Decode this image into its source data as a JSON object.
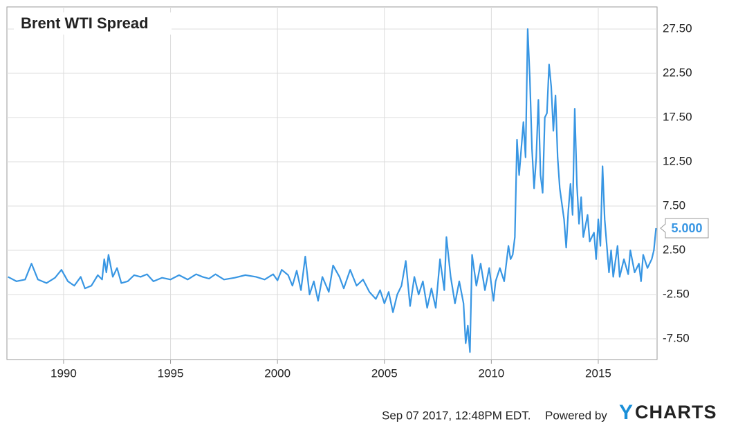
{
  "chart_data": {
    "type": "line",
    "x": [
      1987.4,
      1987.8,
      1988.2,
      1988.5,
      1988.8,
      1989.2,
      1989.6,
      1989.9,
      1990.2,
      1990.5,
      1990.8,
      1991.0,
      1991.3,
      1991.6,
      1991.8,
      1991.9,
      1992.0,
      1992.1,
      1992.3,
      1992.5,
      1992.7,
      1993.0,
      1993.3,
      1993.6,
      1993.9,
      1994.2,
      1994.6,
      1995.0,
      1995.4,
      1995.8,
      1996.2,
      1996.5,
      1996.8,
      1997.1,
      1997.5,
      1998.0,
      1998.5,
      1999.0,
      1999.4,
      1999.8,
      2000.0,
      2000.2,
      2000.5,
      2000.7,
      2000.9,
      2001.1,
      2001.3,
      2001.5,
      2001.7,
      2001.9,
      2002.1,
      2002.4,
      2002.6,
      2002.9,
      2003.1,
      2003.4,
      2003.7,
      2004.0,
      2004.3,
      2004.6,
      2004.8,
      2005.0,
      2005.2,
      2005.4,
      2005.6,
      2005.8,
      2006.0,
      2006.2,
      2006.4,
      2006.6,
      2006.8,
      2007.0,
      2007.2,
      2007.4,
      2007.6,
      2007.8,
      2007.9,
      2008.1,
      2008.3,
      2008.5,
      2008.7,
      2008.8,
      2008.9,
      2009.0,
      2009.1,
      2009.3,
      2009.5,
      2009.7,
      2009.9,
      2010.1,
      2010.2,
      2010.4,
      2010.6,
      2010.8,
      2010.9,
      2011.0,
      2011.1,
      2011.2,
      2011.3,
      2011.5,
      2011.6,
      2011.7,
      2011.8,
      2011.9,
      2012.0,
      2012.1,
      2012.2,
      2012.3,
      2012.4,
      2012.5,
      2012.6,
      2012.7,
      2012.8,
      2012.9,
      2013.0,
      2013.1,
      2013.2,
      2013.4,
      2013.5,
      2013.6,
      2013.7,
      2013.8,
      2013.9,
      2014.0,
      2014.1,
      2014.2,
      2014.3,
      2014.5,
      2014.6,
      2014.8,
      2014.9,
      2015.0,
      2015.1,
      2015.2,
      2015.3,
      2015.5,
      2015.6,
      2015.7,
      2015.9,
      2016.0,
      2016.2,
      2016.4,
      2016.5,
      2016.7,
      2016.9,
      2017.0,
      2017.1,
      2017.3,
      2017.5,
      2017.6,
      2017.7
    ],
    "series": [
      {
        "name": "Brent WTI Spread",
        "color": "#3896e3",
        "values": [
          -0.5,
          -1.0,
          -0.8,
          1.0,
          -0.8,
          -1.2,
          -0.6,
          0.3,
          -1.0,
          -1.5,
          -0.5,
          -1.8,
          -1.5,
          -0.3,
          -0.8,
          1.5,
          0.0,
          2.0,
          -0.5,
          0.5,
          -1.2,
          -1.0,
          -0.3,
          -0.5,
          -0.2,
          -1.0,
          -0.6,
          -0.8,
          -0.3,
          -0.8,
          -0.2,
          -0.5,
          -0.7,
          -0.2,
          -0.8,
          -0.6,
          -0.3,
          -0.5,
          -0.8,
          -0.2,
          -0.9,
          0.3,
          -0.3,
          -1.5,
          0.2,
          -2.0,
          1.8,
          -2.5,
          -1.0,
          -3.2,
          -0.5,
          -2.2,
          0.8,
          -0.5,
          -1.8,
          0.3,
          -1.5,
          -0.8,
          -2.2,
          -3.0,
          -2.0,
          -3.5,
          -2.2,
          -4.5,
          -2.5,
          -1.5,
          1.3,
          -3.8,
          -0.5,
          -2.5,
          -1.0,
          -4.0,
          -1.8,
          -4.0,
          1.5,
          -2.0,
          4.0,
          -0.5,
          -3.5,
          -1.0,
          -3.5,
          -8.0,
          -6.0,
          -9.0,
          2.0,
          -1.5,
          1.0,
          -2.0,
          0.5,
          -3.2,
          -1.0,
          0.5,
          -1.0,
          3.0,
          1.5,
          2.0,
          4.0,
          15.0,
          11.0,
          17.0,
          13.0,
          27.5,
          22.0,
          14.0,
          9.5,
          13.0,
          19.5,
          11.0,
          9.0,
          17.5,
          18.0,
          23.5,
          21.0,
          16.0,
          20.0,
          13.0,
          9.5,
          6.0,
          2.8,
          7.0,
          10.0,
          6.5,
          18.5,
          10.0,
          5.5,
          8.5,
          4.0,
          6.5,
          3.5,
          4.5,
          1.5,
          6.0,
          3.0,
          12.0,
          6.0,
          0.0,
          2.5,
          -0.5,
          3.0,
          -0.5,
          1.5,
          -0.2,
          2.5,
          0.0,
          1.0,
          -1.0,
          2.0,
          0.5,
          1.5,
          2.5,
          5.0
        ],
        "value_labels": [
          null,
          null,
          null,
          null,
          null,
          null,
          null,
          null,
          null,
          null,
          null,
          null,
          null,
          null,
          null,
          null,
          null,
          null,
          null,
          null,
          null,
          null,
          null,
          null,
          null,
          null,
          null,
          null,
          null,
          null,
          null,
          null,
          null,
          null,
          null,
          null,
          null,
          null,
          null,
          null,
          null,
          null,
          null,
          null,
          null,
          null,
          null,
          null,
          null,
          null,
          null,
          null,
          null,
          null,
          null,
          null,
          null,
          null,
          null,
          null,
          null,
          null,
          null,
          null,
          null,
          null,
          null,
          null,
          null,
          null,
          null,
          null,
          null,
          null,
          null,
          null,
          null,
          null,
          null,
          null,
          null,
          null,
          null,
          null,
          null,
          null,
          null,
          null,
          null,
          null,
          null,
          null,
          null,
          null,
          null,
          null,
          null,
          null,
          null,
          null,
          null,
          null,
          null,
          null,
          null,
          null,
          null,
          null,
          null,
          null,
          null,
          null,
          null,
          null,
          null,
          null,
          null,
          null,
          null,
          null,
          null,
          null,
          null,
          null,
          null,
          null,
          null,
          null,
          null,
          null,
          null,
          null,
          null,
          null,
          null,
          null,
          null,
          null,
          null,
          null,
          null,
          null,
          null,
          null,
          null,
          null,
          null,
          null,
          null,
          null,
          "5.000"
        ]
      }
    ],
    "xlim": [
      1987.35,
      2017.75
    ],
    "xticks": [
      1990,
      1995,
      2000,
      2005,
      2010,
      2015
    ],
    "ylim": [
      -9.84,
      30
    ],
    "yticks": [
      {
        "value": -7.5,
        "label": "-7.50"
      },
      {
        "value": -2.5,
        "label": "-2.50"
      },
      {
        "value": 2.5,
        "label": "2.50"
      },
      {
        "value": 7.5,
        "label": "7.50"
      },
      {
        "value": 12.5,
        "label": "12.50"
      },
      {
        "value": 17.5,
        "label": "17.50"
      },
      {
        "value": 22.5,
        "label": "22.50"
      },
      {
        "value": 27.5,
        "label": "27.50"
      }
    ],
    "grid": true,
    "footer": {
      "timestamp": "Sep 07 2017, 12:48PM EDT.",
      "powered": "Powered by",
      "logo_y": "Y",
      "logo_rest": "CHARTS"
    }
  }
}
